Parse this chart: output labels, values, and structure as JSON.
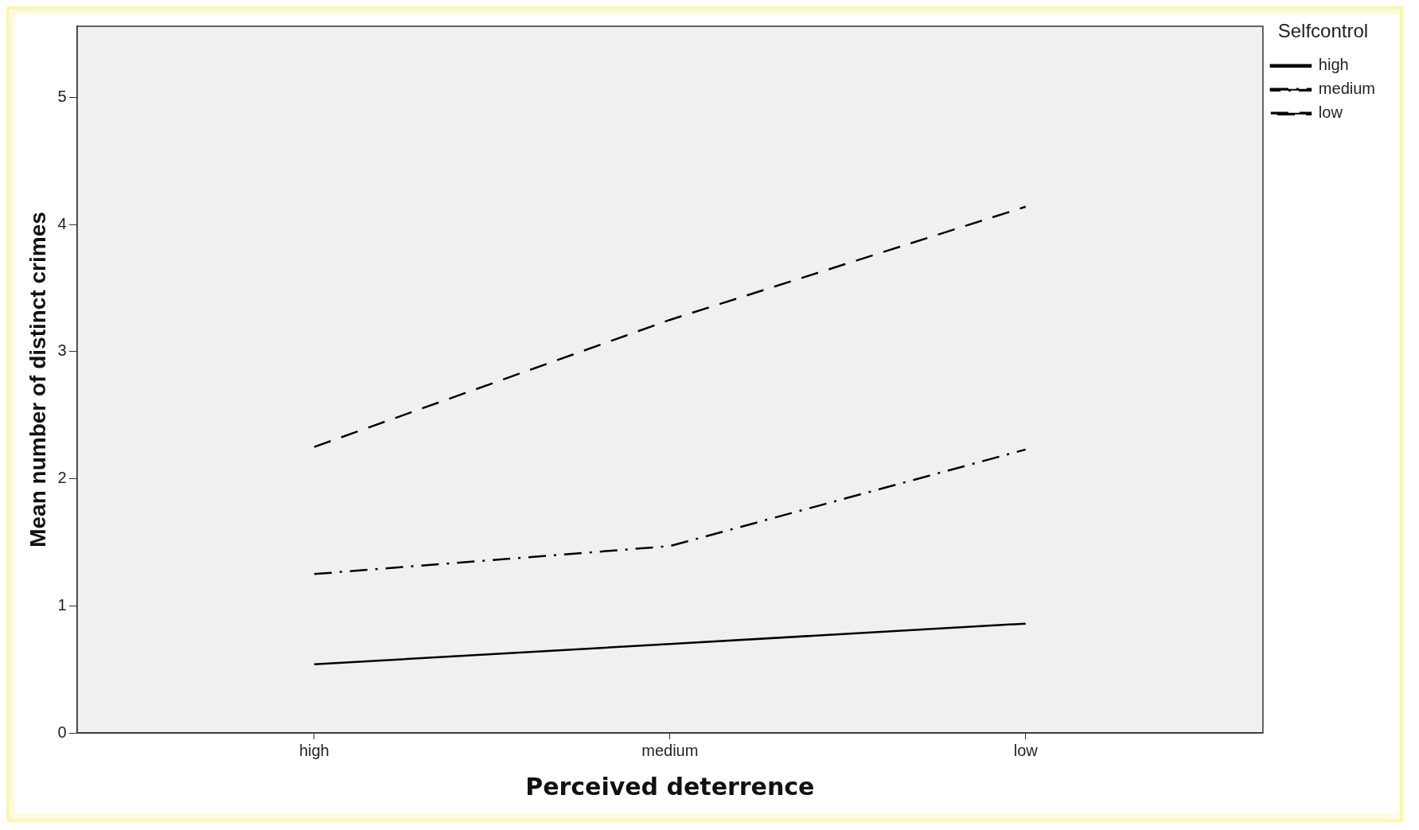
{
  "chart_data": {
    "type": "line",
    "xlabel": "Perceived deterrence",
    "ylabel": "Mean number of distinct crimes",
    "legend_title": "Selfcontrol",
    "legend": "top right",
    "categories": [
      "high",
      "medium",
      "low"
    ],
    "ylim": [
      0,
      5.56
    ],
    "yticks": [
      0,
      1,
      2,
      3,
      4,
      5
    ],
    "grid": false,
    "marker": "none",
    "series": [
      {
        "name": "high",
        "color": "#000000",
        "line_style": "solid",
        "values": [
          0.54,
          0.7,
          0.86
        ]
      },
      {
        "name": "medium",
        "color": "#000000",
        "line_style": "dashdot",
        "values": [
          1.25,
          1.47,
          2.23
        ]
      },
      {
        "name": "low",
        "color": "#000000",
        "line_style": "dashed",
        "values": [
          2.25,
          3.25,
          4.14
        ]
      }
    ]
  }
}
